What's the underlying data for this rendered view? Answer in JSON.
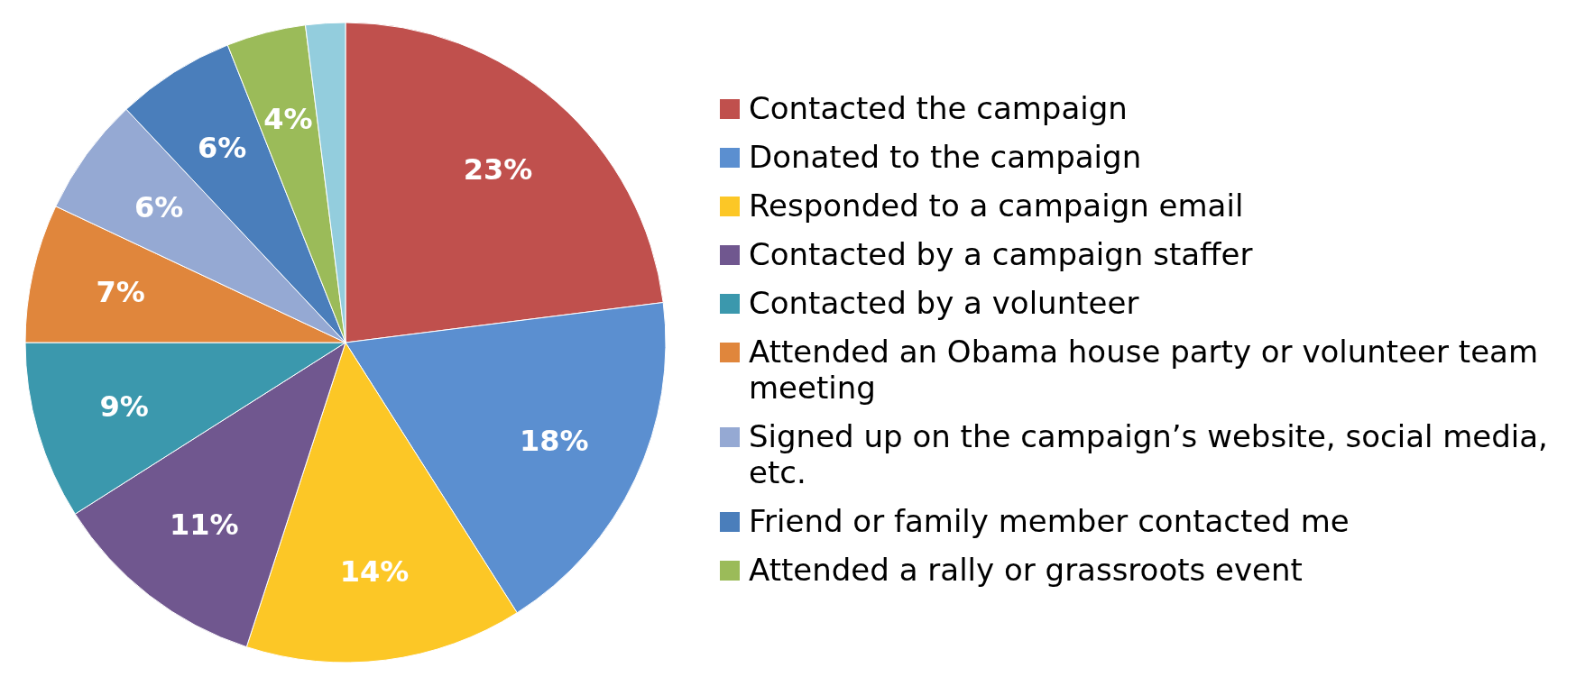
{
  "chart_data": {
    "type": "pie",
    "categories": [
      "Contacted the campaign",
      "Donated to the campaign",
      "Responded to a campaign email",
      "Contacted by a campaign staffer",
      "Contacted by a volunteer",
      "Attended an Obama house party or volunteer team meeting",
      "Signed up on the campaign’s website, social media, etc.",
      "Friend or family member contacted me",
      "Attended a rally or grassroots event",
      null
    ],
    "values": [
      23,
      18,
      14,
      11,
      9,
      7,
      6,
      6,
      4,
      2
    ],
    "colors": [
      "#c0504d",
      "#5b8fd0",
      "#fcc726",
      "#70578f",
      "#3b98ad",
      "#e0863c",
      "#95a9d3",
      "#4a7ebb",
      "#9bbb59",
      "#93cddd"
    ],
    "value_labels": [
      "23%",
      "18%",
      "14%",
      "11%",
      "9%",
      "7%",
      "6%",
      "6%",
      "4%",
      null
    ],
    "legend": "right"
  }
}
